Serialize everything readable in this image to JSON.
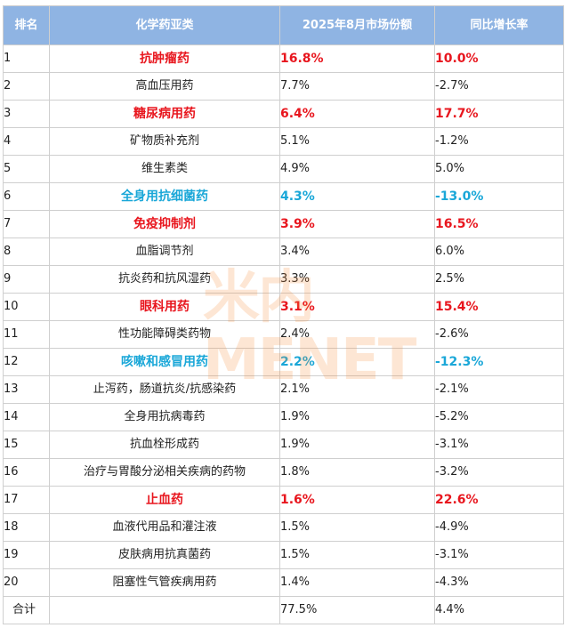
{
  "header": {
    "rank": "排名",
    "category": "化学药亚类",
    "share": "2025年8月市场份额",
    "growth": "同比增长率"
  },
  "rows": [
    {
      "rank": "1",
      "category": "抗肿瘤药",
      "share": "16.8%",
      "growth": "10.0%",
      "highlight": "red"
    },
    {
      "rank": "2",
      "category": "高血压用药",
      "share": "7.7%",
      "growth": "-2.7%",
      "highlight": ""
    },
    {
      "rank": "3",
      "category": "糖尿病用药",
      "share": "6.4%",
      "growth": "17.7%",
      "highlight": "red"
    },
    {
      "rank": "4",
      "category": "矿物质补充剂",
      "share": "5.1%",
      "growth": "-1.2%",
      "highlight": ""
    },
    {
      "rank": "5",
      "category": "维生素类",
      "share": "4.9%",
      "growth": "5.0%",
      "highlight": ""
    },
    {
      "rank": "6",
      "category": "全身用抗细菌药",
      "share": "4.3%",
      "growth": "-13.0%",
      "highlight": "blue"
    },
    {
      "rank": "7",
      "category": "免疫抑制剂",
      "share": "3.9%",
      "growth": "16.5%",
      "highlight": "red"
    },
    {
      "rank": "8",
      "category": "血脂调节剂",
      "share": "3.4%",
      "growth": "6.0%",
      "highlight": ""
    },
    {
      "rank": "9",
      "category": "抗炎药和抗风湿药",
      "share": "3.3%",
      "growth": "2.5%",
      "highlight": ""
    },
    {
      "rank": "10",
      "category": "眼科用药",
      "share": "3.1%",
      "growth": "15.4%",
      "highlight": "red"
    },
    {
      "rank": "11",
      "category": "性功能障碍类药物",
      "share": "2.4%",
      "growth": "-2.6%",
      "highlight": ""
    },
    {
      "rank": "12",
      "category": "咳嗽和感冒用药",
      "share": "2.2%",
      "growth": "-12.3%",
      "highlight": "blue"
    },
    {
      "rank": "13",
      "category": "止泻药，肠道抗炎/抗感染药",
      "share": "2.1%",
      "growth": "-2.1%",
      "highlight": ""
    },
    {
      "rank": "14",
      "category": "全身用抗病毒药",
      "share": "1.9%",
      "growth": "-5.2%",
      "highlight": ""
    },
    {
      "rank": "15",
      "category": "抗血栓形成药",
      "share": "1.9%",
      "growth": "-3.1%",
      "highlight": ""
    },
    {
      "rank": "16",
      "category": "治疗与胃酸分泌相关疾病的药物",
      "share": "1.8%",
      "growth": "-3.2%",
      "highlight": ""
    },
    {
      "rank": "17",
      "category": "止血药",
      "share": "1.6%",
      "growth": "22.6%",
      "highlight": "red"
    },
    {
      "rank": "18",
      "category": "血液代用品和灌注液",
      "share": "1.5%",
      "growth": "-4.9%",
      "highlight": ""
    },
    {
      "rank": "19",
      "category": "皮肤病用抗真菌药",
      "share": "1.5%",
      "growth": "-3.1%",
      "highlight": ""
    },
    {
      "rank": "20",
      "category": "阻塞性气管疾病用药",
      "share": "1.4%",
      "growth": "-4.3%",
      "highlight": ""
    }
  ],
  "total": {
    "label": "合计",
    "category": "",
    "share": "77.5%",
    "growth": "4.4%"
  },
  "watermark": {
    "text": "米内MENET"
  },
  "colors": {
    "header_bg": "#8fb4e3",
    "highlight_red": "#e8161e",
    "highlight_blue": "#1aa7d8",
    "watermark": "#f58c3c"
  }
}
